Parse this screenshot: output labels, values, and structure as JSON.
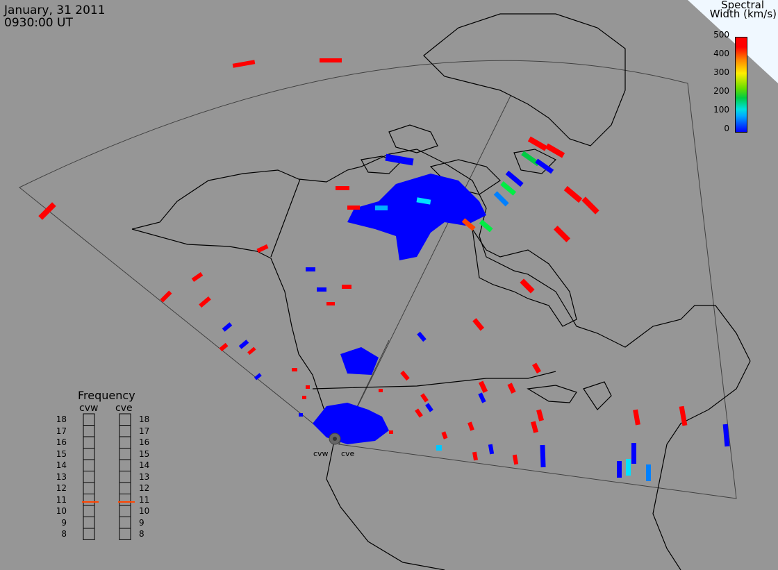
{
  "header": {
    "date": "January, 31 2011",
    "time": "0930:00 UT"
  },
  "colorbar": {
    "title_line1": "Spectral",
    "title_line2": "Width (km/s)",
    "ticks": [
      "500",
      "400",
      "300",
      "200",
      "100",
      "0"
    ],
    "colors": [
      "#0000ff",
      "#00c8ff",
      "#00cc44",
      "#ffee00",
      "#ff8800",
      "#ff0000"
    ]
  },
  "frequency_panel": {
    "title": "Frequency",
    "radars": [
      "cvw",
      "cve"
    ],
    "scale": [
      "18",
      "17",
      "16",
      "15",
      "14",
      "13",
      "12",
      "11",
      "10",
      "9",
      "8"
    ],
    "cvw_value": 10.8,
    "cve_value": 10.8
  },
  "radar_sites": [
    "cvw",
    "cve"
  ],
  "colors": {
    "background": "#969696",
    "map_outline": "#000000",
    "fov_outline": "#404040",
    "low_width": "#0000ff",
    "high_width": "#ff0000",
    "indicator": "#ff4400"
  }
}
